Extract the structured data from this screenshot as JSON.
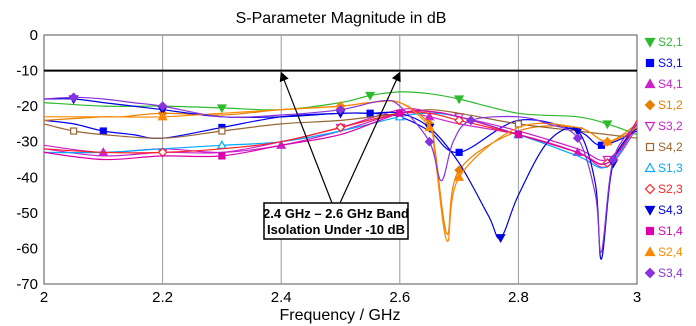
{
  "chart_data": {
    "type": "line",
    "title": "S-Parameter Magnitude in dB",
    "xlabel": "Frequency / GHz",
    "ylabel": "",
    "xlim": [
      2,
      3
    ],
    "ylim": [
      -70,
      0
    ],
    "x_ticks": [
      "2",
      "2.2",
      "2.4",
      "2.6",
      "2.8",
      "3"
    ],
    "y_ticks": [
      "0",
      "-10",
      "-20",
      "-30",
      "-40",
      "-50",
      "-60",
      "-70"
    ],
    "grid": "vertical at major x ticks",
    "legend_position": "right",
    "reference_line": {
      "y": -10
    },
    "annotation": {
      "lines": [
        "2.4 GHz – 2.6 GHz Band",
        "Isolation Under -10 dB"
      ],
      "arrows_to_x": [
        2.4,
        2.6
      ]
    },
    "series": [
      {
        "name": "S2,1",
        "color": "#2dbb2d",
        "marker": "tri-down",
        "x": [
          2,
          2.1,
          2.2,
          2.3,
          2.4,
          2.5,
          2.55,
          2.6,
          2.65,
          2.7,
          2.8,
          2.9,
          2.95,
          3
        ],
        "y": [
          -19,
          -20,
          -20,
          -20.5,
          -21,
          -19,
          -17,
          -16,
          -16.5,
          -18,
          -22,
          -23,
          -25,
          -28
        ]
      },
      {
        "name": "S3,1",
        "color": "#0000ff",
        "marker": "square",
        "x": [
          2,
          2.05,
          2.1,
          2.15,
          2.2,
          2.3,
          2.4,
          2.5,
          2.55,
          2.6,
          2.65,
          2.7,
          2.8,
          2.9,
          2.94,
          3
        ],
        "y": [
          -24,
          -25,
          -27,
          -28,
          -29,
          -26,
          -23,
          -22,
          -22,
          -23,
          -27,
          -33,
          -24,
          -27,
          -31,
          -27
        ]
      },
      {
        "name": "S4,1",
        "color": "#cc22cc",
        "marker": "tri-up",
        "x": [
          2,
          2.1,
          2.2,
          2.3,
          2.4,
          2.5,
          2.6,
          2.65,
          2.7,
          2.8,
          2.9,
          2.95,
          3
        ],
        "y": [
          -31,
          -33,
          -32,
          -33,
          -31,
          -27,
          -22,
          -23,
          -25,
          -28,
          -33,
          -37,
          -26
        ]
      },
      {
        "name": "S1,2",
        "color": "#e67e00",
        "marker": "diamond",
        "x": [
          2,
          2.1,
          2.13,
          2.2,
          2.3,
          2.4,
          2.5,
          2.55,
          2.6,
          2.65,
          2.66,
          2.68,
          2.7,
          2.8,
          2.9,
          2.95,
          3
        ],
        "y": [
          -24,
          -23,
          -23,
          -22,
          -22.5,
          -21,
          -20,
          -19,
          -19,
          -25,
          -33,
          -56,
          -38,
          -27,
          -26,
          -30,
          -25
        ]
      },
      {
        "name": "S3,2",
        "color": "#cc22cc",
        "marker": "tri-down-open",
        "x": [
          2,
          2.1,
          2.2,
          2.3,
          2.4,
          2.5,
          2.6,
          2.65,
          2.7,
          2.8,
          2.9,
          2.95,
          3
        ],
        "y": [
          -32,
          -34,
          -33,
          -33,
          -30,
          -26,
          -21,
          -21.5,
          -23,
          -27,
          -32,
          -35,
          -25
        ]
      },
      {
        "name": "S4,2",
        "color": "#996633",
        "marker": "square-open",
        "x": [
          2,
          2.05,
          2.1,
          2.2,
          2.3,
          2.4,
          2.5,
          2.6,
          2.65,
          2.7,
          2.8,
          2.9,
          3
        ],
        "y": [
          -25,
          -27,
          -28,
          -29,
          -27,
          -25,
          -24,
          -22,
          -21,
          -22,
          -25,
          -27,
          -29
        ]
      },
      {
        "name": "S1,3",
        "color": "#00aaff",
        "marker": "tri-up-open",
        "x": [
          2,
          2.1,
          2.2,
          2.3,
          2.4,
          2.5,
          2.6,
          2.65,
          2.7,
          2.8,
          2.9,
          2.95,
          3
        ],
        "y": [
          -33,
          -33,
          -32,
          -31,
          -30,
          -27,
          -23,
          -22,
          -23,
          -28,
          -34,
          -37,
          -25
        ]
      },
      {
        "name": "S2,3",
        "color": "#ff2222",
        "marker": "diamond-open",
        "x": [
          2,
          2.1,
          2.2,
          2.3,
          2.4,
          2.5,
          2.6,
          2.65,
          2.7,
          2.8,
          2.9,
          2.95,
          3
        ],
        "y": [
          -32,
          -33,
          -33,
          -32,
          -30,
          -26,
          -22,
          -22,
          -24,
          -28,
          -33,
          -36,
          -24
        ]
      },
      {
        "name": "S4,3",
        "color": "#0000dd",
        "marker": "tri-down",
        "x": [
          2,
          2.05,
          2.1,
          2.15,
          2.2,
          2.3,
          2.4,
          2.5,
          2.55,
          2.6,
          2.65,
          2.7,
          2.75,
          2.77,
          2.8,
          2.85,
          2.9,
          2.93,
          2.94,
          2.96,
          3
        ],
        "y": [
          -18,
          -18,
          -19,
          -20,
          -21,
          -23,
          -23,
          -22,
          -22,
          -22,
          -26,
          -36,
          -51,
          -57,
          -45,
          -30,
          -27,
          -42,
          -63,
          -36,
          -26
        ]
      },
      {
        "name": "S1,4",
        "color": "#dd00aa",
        "marker": "square",
        "x": [
          2,
          2.1,
          2.2,
          2.3,
          2.4,
          2.5,
          2.6,
          2.65,
          2.7,
          2.8,
          2.9,
          2.95,
          3
        ],
        "y": [
          -33,
          -35,
          -34,
          -34,
          -31,
          -28,
          -22,
          -21.5,
          -23,
          -28,
          -33,
          -36,
          -25
        ]
      },
      {
        "name": "S2,4",
        "color": "#ff8800",
        "marker": "tri-up",
        "x": [
          2,
          2.1,
          2.2,
          2.3,
          2.4,
          2.5,
          2.55,
          2.6,
          2.65,
          2.66,
          2.68,
          2.7,
          2.8,
          2.9,
          2.95,
          3
        ],
        "y": [
          -23,
          -23,
          -23,
          -22,
          -21,
          -20,
          -19,
          -19,
          -26,
          -35,
          -58,
          -40,
          -26,
          -26,
          -30,
          -26
        ]
      },
      {
        "name": "S3,4",
        "color": "#8833dd",
        "marker": "diamond",
        "x": [
          2,
          2.05,
          2.1,
          2.15,
          2.2,
          2.3,
          2.4,
          2.5,
          2.57,
          2.6,
          2.65,
          2.67,
          2.69,
          2.72,
          2.8,
          2.85,
          2.9,
          2.93,
          2.94,
          2.96,
          3
        ],
        "y": [
          -18,
          -17.5,
          -18,
          -19,
          -20,
          -23,
          -22.5,
          -21,
          -18.5,
          -20,
          -30,
          -41,
          -30,
          -24,
          -23,
          -25,
          -29,
          -45,
          -61,
          -35,
          -25
        ]
      }
    ]
  }
}
